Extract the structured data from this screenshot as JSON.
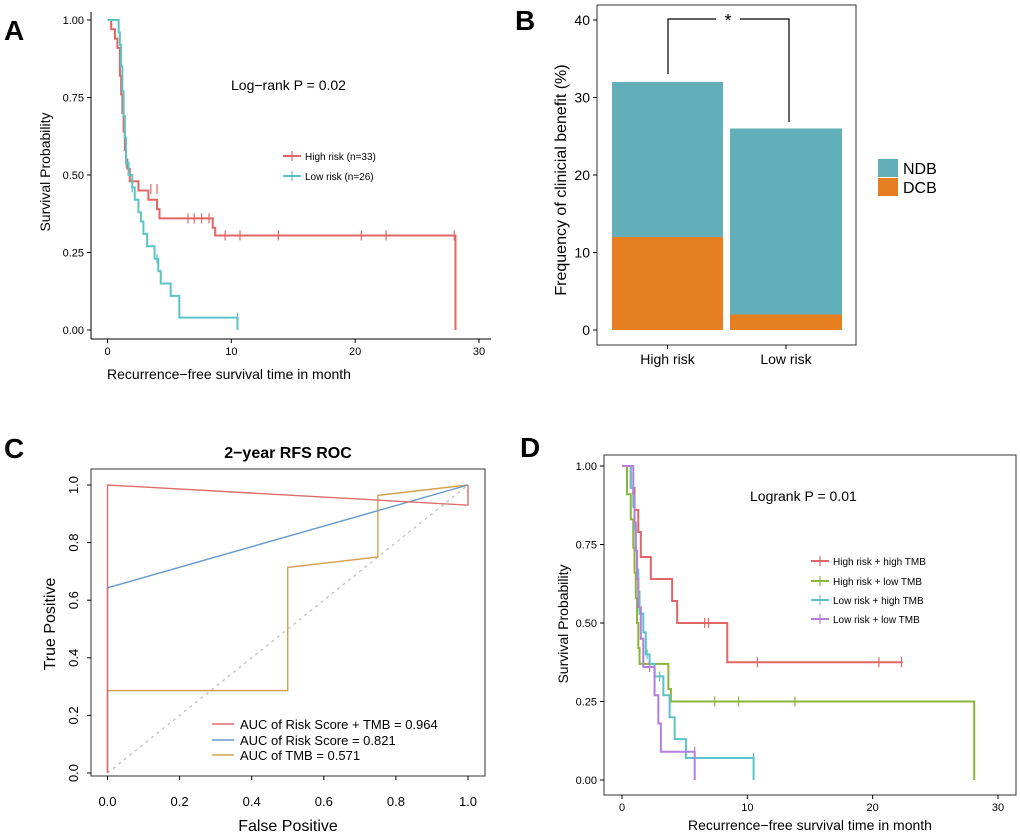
{
  "chart_data": [
    {
      "panel": "A",
      "type": "line",
      "subtype": "kaplan-meier",
      "title": "",
      "xlabel": "Recurrence−free survival time in month",
      "ylabel": "Survival   Probability",
      "xlim": [
        0,
        30
      ],
      "ylim": [
        0,
        1
      ],
      "xticks": [
        "0",
        "10",
        "20",
        "30"
      ],
      "yticks": [
        "0.00",
        "0.25",
        "0.50",
        "0.75",
        "1.00"
      ],
      "annotation": "Log−rank P = 0.02",
      "legend_position": "center-right",
      "series": [
        {
          "name": "High risk (n=33)",
          "color": "#E06666",
          "steps": [
            [
              0,
              1.0
            ],
            [
              0.3,
              0.97
            ],
            [
              0.6,
              0.94
            ],
            [
              0.8,
              0.91
            ],
            [
              1.0,
              0.82
            ],
            [
              1.1,
              0.76
            ],
            [
              1.2,
              0.7
            ],
            [
              1.3,
              0.64
            ],
            [
              1.4,
              0.58
            ],
            [
              1.5,
              0.55
            ],
            [
              1.6,
              0.52
            ],
            [
              1.8,
              0.48
            ],
            [
              2.5,
              0.45
            ],
            [
              3.3,
              0.42
            ],
            [
              4.0,
              0.39
            ],
            [
              4.2,
              0.36
            ],
            [
              8.5,
              0.33
            ],
            [
              8.7,
              0.305
            ],
            [
              28.1,
              0.0
            ]
          ],
          "censor": [
            [
              3.5,
              0.455
            ],
            [
              4.0,
              0.455
            ],
            [
              6.5,
              0.36
            ],
            [
              7.0,
              0.36
            ],
            [
              7.6,
              0.36
            ],
            [
              8.2,
              0.36
            ],
            [
              9.5,
              0.305
            ],
            [
              10.7,
              0.305
            ],
            [
              13.8,
              0.305
            ],
            [
              20.5,
              0.305
            ],
            [
              22.5,
              0.305
            ],
            [
              28.0,
              0.305
            ]
          ]
        },
        {
          "name": "Low risk (n=26)",
          "color": "#5CC4C8",
          "steps": [
            [
              0,
              1.0
            ],
            [
              0.3,
              1.0
            ],
            [
              0.9,
              0.96
            ],
            [
              1.0,
              0.92
            ],
            [
              1.1,
              0.85
            ],
            [
              1.2,
              0.77
            ],
            [
              1.3,
              0.69
            ],
            [
              1.4,
              0.62
            ],
            [
              1.5,
              0.54
            ],
            [
              1.7,
              0.5
            ],
            [
              2.0,
              0.46
            ],
            [
              2.2,
              0.42
            ],
            [
              2.5,
              0.38
            ],
            [
              2.7,
              0.35
            ],
            [
              2.9,
              0.31
            ],
            [
              3.2,
              0.27
            ],
            [
              3.8,
              0.23
            ],
            [
              4.1,
              0.19
            ],
            [
              4.3,
              0.15
            ],
            [
              5.1,
              0.11
            ],
            [
              5.8,
              0.04
            ],
            [
              10.5,
              0.0
            ]
          ],
          "censor": [
            [
              1.5,
              0.54
            ],
            [
              2.0,
              0.46
            ],
            [
              4.0,
              0.23
            ],
            [
              10.5,
              0.04
            ]
          ]
        }
      ]
    },
    {
      "panel": "B",
      "type": "bar",
      "subtype": "stacked",
      "xlabel": "",
      "ylabel": "Frequency of clinicial benefit (%)",
      "ylim": [
        0,
        42
      ],
      "yticks": [
        "0",
        "10",
        "20",
        "30",
        "40"
      ],
      "categories": [
        "High risk",
        "Low risk"
      ],
      "series": [
        {
          "name": "DCB",
          "color": "#E67E22",
          "values": [
            12,
            2
          ]
        },
        {
          "name": "NDB",
          "color": "#62AFB9",
          "values": [
            20,
            24
          ]
        }
      ],
      "legend": [
        "NDB",
        "DCB"
      ],
      "legend_position": "right",
      "significance": "*"
    },
    {
      "panel": "C",
      "type": "line",
      "subtype": "roc",
      "title": "2−year RFS ROC",
      "xlabel": "False Positive",
      "ylabel": "True Positive",
      "xlim": [
        0,
        1
      ],
      "ylim": [
        0,
        1
      ],
      "xticks": [
        "0.0",
        "0.2",
        "0.4",
        "0.6",
        "0.8",
        "1.0"
      ],
      "yticks": [
        "0.0",
        "0.2",
        "0.4",
        "0.6",
        "0.8",
        "1.0"
      ],
      "legend_position": "bottom-right",
      "series": [
        {
          "name": "AUC of Risk Score + TMB = 0.964",
          "color": "#E06B6B",
          "points": [
            [
              0,
              0
            ],
            [
              0,
              1
            ],
            [
              1,
              0.93
            ],
            [
              1,
              1
            ]
          ]
        },
        {
          "name": "AUC of  Risk Score = 0.821",
          "color": "#6699CC",
          "points": [
            [
              0,
              0
            ],
            [
              0,
              0.643
            ],
            [
              1,
              1
            ]
          ]
        },
        {
          "name": "AUC of  TMB = 0.571",
          "color": "#D4A050",
          "points": [
            [
              0,
              0
            ],
            [
              0,
              0.286
            ],
            [
              0.5,
              0.286
            ],
            [
              0.5,
              0.714
            ],
            [
              0.75,
              0.75
            ],
            [
              0.75,
              0.964
            ],
            [
              1,
              1
            ]
          ]
        }
      ],
      "diagonal": true
    },
    {
      "panel": "D",
      "type": "line",
      "subtype": "kaplan-meier",
      "xlabel": "Recurrence−free survival time in month",
      "ylabel": "Survival   Probability",
      "xlim": [
        0,
        30
      ],
      "ylim": [
        0,
        1
      ],
      "xticks": [
        "0",
        "10",
        "20",
        "30"
      ],
      "yticks": [
        "0.00",
        "0.25",
        "0.50",
        "0.75",
        "1.00"
      ],
      "annotation": "Logrank P = 0.01",
      "legend_position": "center-right",
      "series": [
        {
          "name": "High risk + high TMB",
          "color": "#E06666",
          "steps": [
            [
              0,
              1.0
            ],
            [
              0.7,
              0.93
            ],
            [
              1.0,
              0.86
            ],
            [
              1.3,
              0.79
            ],
            [
              1.5,
              0.71
            ],
            [
              2.3,
              0.64
            ],
            [
              4.0,
              0.57
            ],
            [
              4.4,
              0.5
            ],
            [
              8.4,
              0.375
            ],
            [
              22.4,
              0.375
            ]
          ],
          "censor": [
            [
              6.6,
              0.5
            ],
            [
              6.9,
              0.5
            ],
            [
              10.8,
              0.375
            ],
            [
              20.5,
              0.375
            ],
            [
              22.3,
              0.375
            ]
          ]
        },
        {
          "name": "High risk + low TMB",
          "color": "#8DB33A",
          "steps": [
            [
              0,
              1.0
            ],
            [
              0.4,
              0.91
            ],
            [
              0.7,
              0.83
            ],
            [
              0.9,
              0.74
            ],
            [
              1.0,
              0.66
            ],
            [
              1.1,
              0.58
            ],
            [
              1.2,
              0.5
            ],
            [
              1.3,
              0.42
            ],
            [
              1.4,
              0.37
            ],
            [
              3.7,
              0.29
            ],
            [
              3.9,
              0.25
            ],
            [
              28.1,
              0.0
            ]
          ],
          "censor": [
            [
              7.4,
              0.25
            ],
            [
              9.3,
              0.25
            ],
            [
              13.8,
              0.25
            ]
          ]
        },
        {
          "name": "Low risk + high TMB",
          "color": "#5CC4C8",
          "steps": [
            [
              0,
              1.0
            ],
            [
              0.7,
              0.93
            ],
            [
              0.9,
              0.87
            ],
            [
              1.0,
              0.8
            ],
            [
              1.1,
              0.73
            ],
            [
              1.2,
              0.67
            ],
            [
              1.3,
              0.6
            ],
            [
              1.4,
              0.53
            ],
            [
              1.7,
              0.47
            ],
            [
              1.9,
              0.4
            ],
            [
              2.2,
              0.37
            ],
            [
              2.6,
              0.33
            ],
            [
              3.3,
              0.27
            ],
            [
              3.8,
              0.2
            ],
            [
              4.2,
              0.13
            ],
            [
              5.1,
              0.07
            ],
            [
              10.5,
              0.0
            ]
          ],
          "censor": [
            [
              2.0,
              0.4
            ],
            [
              3.0,
              0.33
            ],
            [
              10.5,
              0.07
            ]
          ]
        },
        {
          "name": "Low risk + low TMB",
          "color": "#B57EDC",
          "steps": [
            [
              0,
              1.0
            ],
            [
              0.9,
              0.91
            ],
            [
              1.0,
              0.82
            ],
            [
              1.1,
              0.73
            ],
            [
              1.2,
              0.64
            ],
            [
              1.3,
              0.55
            ],
            [
              1.5,
              0.45
            ],
            [
              1.7,
              0.36
            ],
            [
              2.6,
              0.27
            ],
            [
              2.9,
              0.18
            ],
            [
              3.1,
              0.09
            ],
            [
              5.8,
              0.0
            ]
          ],
          "censor": [
            [
              2.2,
              0.36
            ],
            [
              5.8,
              0.09
            ]
          ]
        }
      ]
    }
  ],
  "panel_labels": [
    "A",
    "B",
    "C",
    "D"
  ],
  "colors": {
    "axis": "#000000",
    "grid_box": "#333333",
    "diag": "#BBBBBB"
  }
}
